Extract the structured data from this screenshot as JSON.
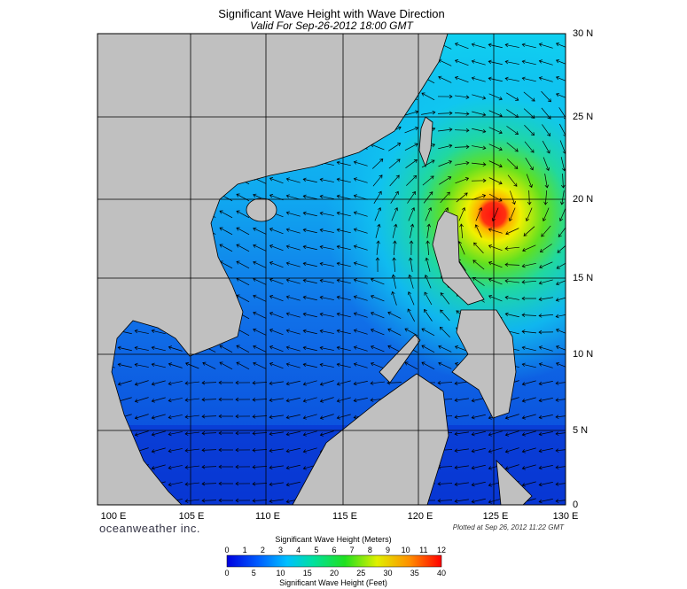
{
  "header": {
    "title": "Significant Wave Height with Wave Direction",
    "subtitle": "Valid For Sep-26-2012 18:00 GMT"
  },
  "map": {
    "longitude_labels": [
      "100 E",
      "105 E",
      "110 E",
      "115 E",
      "120 E",
      "125 E",
      "130 E"
    ],
    "latitude_labels": [
      "30 N",
      "25 N",
      "20 N",
      "15 N",
      "10 N",
      "5 N",
      "0"
    ]
  },
  "footer": {
    "brand": "oceanweather inc.",
    "plotted": "Plotted at Sep 26, 2012 11:22 GMT"
  },
  "legend": {
    "meters_title": "Significant Wave Height (Meters)",
    "meters_ticks": [
      0,
      1,
      2,
      3,
      4,
      5,
      6,
      7,
      8,
      9,
      10,
      11,
      12
    ],
    "feet_ticks": [
      0,
      5,
      10,
      15,
      20,
      25,
      30,
      35,
      40
    ],
    "feet_title": "Significant Wave Height (Feet)"
  }
}
